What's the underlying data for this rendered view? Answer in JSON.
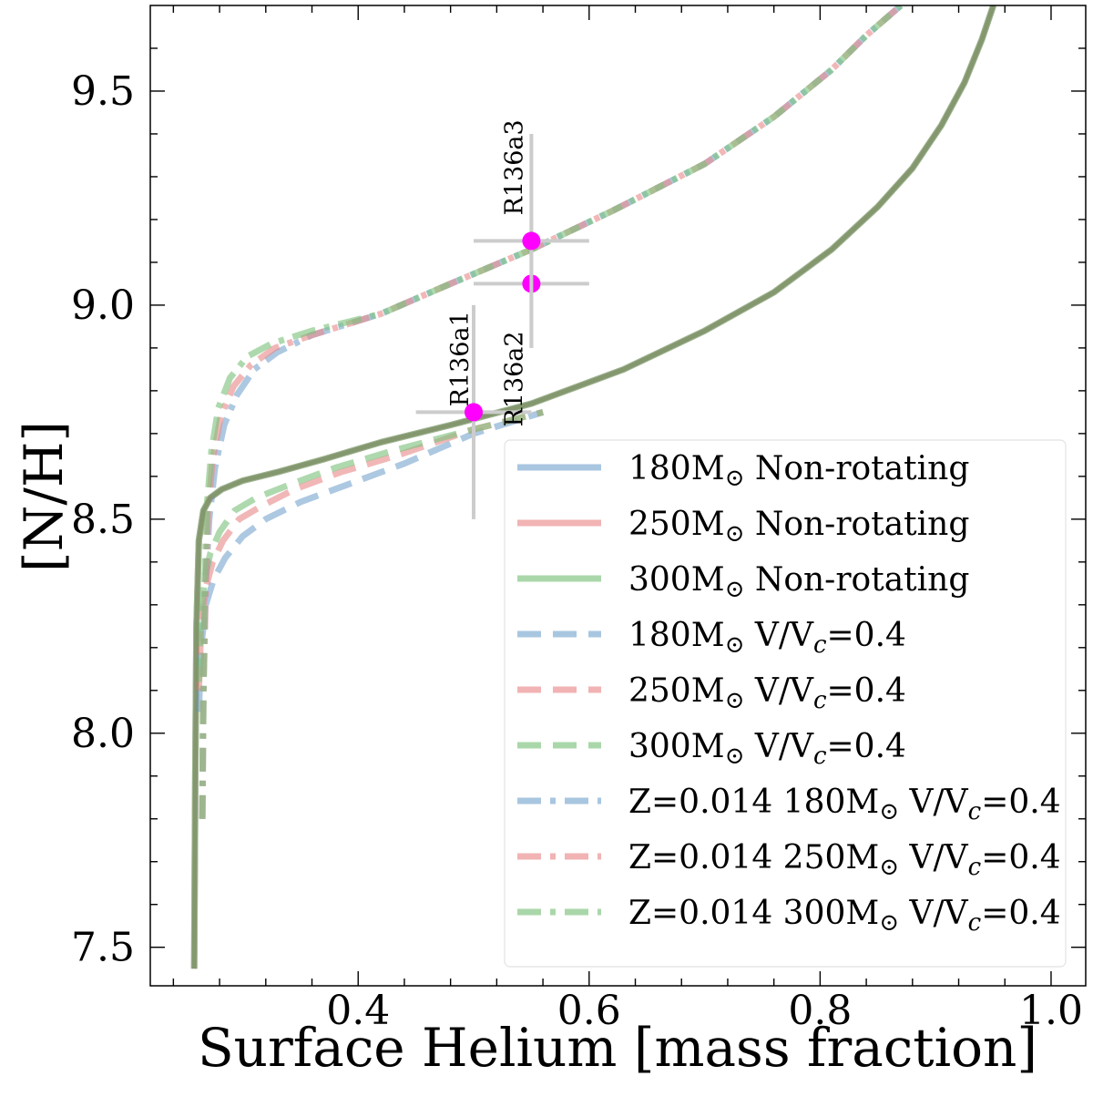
{
  "chart_data": {
    "type": "line",
    "title": "",
    "xlabel": "Surface Helium [mass fraction]",
    "ylabel": "[N/H]",
    "xlim": [
      0.22,
      1.03
    ],
    "ylim": [
      7.41,
      9.7
    ],
    "xticks": [
      0.4,
      0.6,
      0.8,
      1.0
    ],
    "xtick_labels": [
      "0.4",
      "0.6",
      "0.8",
      "1.0"
    ],
    "yticks": [
      7.5,
      8.0,
      8.5,
      9.0,
      9.5
    ],
    "ytick_labels": [
      "7.5",
      "8.0",
      "8.5",
      "9.0",
      "9.5"
    ],
    "grid": false,
    "legend_position": "lower-right",
    "colors": {
      "blue": "#7aa7cf",
      "red": "#e98a8a",
      "green": "#7cc27c",
      "overlap": "#6f7d56",
      "marker": "#ff00ff",
      "errorbar": "#cccccc"
    },
    "legend": [
      {
        "prefix": "180M",
        "suffix": " Non-rotating",
        "color": "blue",
        "dash": "solid"
      },
      {
        "prefix": "250M",
        "suffix": " Non-rotating",
        "color": "red",
        "dash": "solid"
      },
      {
        "prefix": "300M",
        "suffix": " Non-rotating",
        "color": "green",
        "dash": "solid"
      },
      {
        "prefix": "180M",
        "suffix": " V/V",
        "sub": "c",
        "tail": "=0.4",
        "color": "blue",
        "dash": "dashed"
      },
      {
        "prefix": "250M",
        "suffix": " V/V",
        "sub": "c",
        "tail": "=0.4",
        "color": "red",
        "dash": "dashed"
      },
      {
        "prefix": "300M",
        "suffix": " V/V",
        "sub": "c",
        "tail": "=0.4",
        "color": "green",
        "dash": "dashed"
      },
      {
        "prefix": "Z=0.014 180M",
        "suffix": " V/V",
        "sub": "c",
        "tail": "=0.4",
        "color": "blue",
        "dash": "dashdot"
      },
      {
        "prefix": "Z=0.014 250M",
        "suffix": " V/V",
        "sub": "c",
        "tail": "=0.4",
        "color": "red",
        "dash": "dashdot"
      },
      {
        "prefix": "Z=0.014 300M",
        "suffix": " V/V",
        "sub": "c",
        "tail": "=0.4",
        "color": "green",
        "dash": "dashdot"
      }
    ],
    "series": [
      {
        "name": "180M Non-rotating",
        "color": "blue",
        "dash": "solid",
        "x": [
          0.258,
          0.259,
          0.26,
          0.262,
          0.266,
          0.272,
          0.282,
          0.3,
          0.33,
          0.37,
          0.42,
          0.48,
          0.55,
          0.63,
          0.7,
          0.76,
          0.81,
          0.85,
          0.88,
          0.905,
          0.925,
          0.94,
          0.95
        ],
        "y": [
          7.45,
          7.9,
          8.25,
          8.45,
          8.52,
          8.55,
          8.57,
          8.59,
          8.61,
          8.64,
          8.68,
          8.72,
          8.77,
          8.85,
          8.94,
          9.03,
          9.13,
          9.23,
          9.32,
          9.42,
          9.52,
          9.62,
          9.7
        ]
      },
      {
        "name": "250M Non-rotating",
        "color": "red",
        "dash": "solid",
        "x": [
          0.258,
          0.259,
          0.26,
          0.262,
          0.266,
          0.272,
          0.282,
          0.3,
          0.33,
          0.37,
          0.42,
          0.48,
          0.55,
          0.63,
          0.7,
          0.76,
          0.81,
          0.85,
          0.88,
          0.905,
          0.925,
          0.94,
          0.95
        ],
        "y": [
          7.45,
          7.9,
          8.25,
          8.45,
          8.52,
          8.55,
          8.57,
          8.59,
          8.61,
          8.64,
          8.68,
          8.72,
          8.77,
          8.85,
          8.94,
          9.03,
          9.13,
          9.23,
          9.32,
          9.42,
          9.52,
          9.62,
          9.7
        ]
      },
      {
        "name": "300M Non-rotating",
        "color": "green",
        "dash": "solid",
        "x": [
          0.258,
          0.259,
          0.26,
          0.262,
          0.266,
          0.272,
          0.282,
          0.3,
          0.33,
          0.37,
          0.42,
          0.48,
          0.55,
          0.63,
          0.7,
          0.76,
          0.81,
          0.85,
          0.88,
          0.905,
          0.925,
          0.94,
          0.95
        ],
        "y": [
          7.45,
          7.9,
          8.25,
          8.45,
          8.52,
          8.55,
          8.57,
          8.59,
          8.61,
          8.64,
          8.68,
          8.72,
          8.77,
          8.85,
          8.94,
          9.03,
          9.13,
          9.23,
          9.32,
          9.42,
          9.52,
          9.62,
          9.7
        ]
      },
      {
        "name": "180M V/Vc=0.4",
        "color": "blue",
        "dash": "dashed",
        "x": [
          0.262,
          0.264,
          0.268,
          0.275,
          0.285,
          0.3,
          0.32,
          0.35,
          0.39,
          0.44,
          0.5,
          0.56
        ],
        "y": [
          8.05,
          8.2,
          8.3,
          8.36,
          8.41,
          8.46,
          8.5,
          8.54,
          8.58,
          8.63,
          8.7,
          8.75
        ]
      },
      {
        "name": "250M V/Vc=0.4",
        "color": "red",
        "dash": "dashed",
        "x": [
          0.262,
          0.264,
          0.268,
          0.274,
          0.283,
          0.297,
          0.316,
          0.345,
          0.385,
          0.435,
          0.5,
          0.56
        ],
        "y": [
          8.1,
          8.25,
          8.34,
          8.4,
          8.45,
          8.5,
          8.53,
          8.57,
          8.61,
          8.65,
          8.71,
          8.75
        ]
      },
      {
        "name": "300M V/Vc=0.4",
        "color": "green",
        "dash": "dashed",
        "x": [
          0.262,
          0.264,
          0.267,
          0.272,
          0.28,
          0.293,
          0.312,
          0.34,
          0.38,
          0.43,
          0.5,
          0.56
        ],
        "y": [
          8.12,
          8.28,
          8.36,
          8.42,
          8.47,
          8.52,
          8.55,
          8.58,
          8.62,
          8.66,
          8.71,
          8.75
        ]
      },
      {
        "name": "Z=0.014 180M V/Vc=0.4",
        "color": "blue",
        "dash": "dashdot",
        "x": [
          0.265,
          0.266,
          0.268,
          0.271,
          0.276,
          0.284,
          0.295,
          0.31,
          0.33,
          0.36,
          0.42,
          0.48,
          0.55,
          0.62,
          0.7,
          0.76,
          0.81,
          0.84,
          0.87
        ],
        "y": [
          7.8,
          8.1,
          8.35,
          8.5,
          8.62,
          8.72,
          8.79,
          8.85,
          8.89,
          8.93,
          8.98,
          9.05,
          9.13,
          9.22,
          9.33,
          9.44,
          9.55,
          9.63,
          9.7
        ]
      },
      {
        "name": "Z=0.014 250M V/Vc=0.4",
        "color": "red",
        "dash": "dashdot",
        "x": [
          0.265,
          0.266,
          0.268,
          0.27,
          0.274,
          0.281,
          0.292,
          0.307,
          0.328,
          0.36,
          0.42,
          0.48,
          0.55,
          0.62,
          0.7,
          0.76,
          0.81,
          0.84,
          0.87
        ],
        "y": [
          7.8,
          8.1,
          8.35,
          8.52,
          8.64,
          8.74,
          8.81,
          8.86,
          8.9,
          8.93,
          8.98,
          9.05,
          9.13,
          9.22,
          9.33,
          9.44,
          9.55,
          9.63,
          9.7
        ]
      },
      {
        "name": "Z=0.014 300M V/Vc=0.4",
        "color": "green",
        "dash": "dashdot",
        "x": [
          0.265,
          0.266,
          0.267,
          0.269,
          0.273,
          0.279,
          0.289,
          0.304,
          0.325,
          0.36,
          0.42,
          0.48,
          0.55,
          0.62,
          0.7,
          0.76,
          0.81,
          0.84,
          0.87
        ],
        "y": [
          7.8,
          8.1,
          8.35,
          8.53,
          8.66,
          8.76,
          8.83,
          8.88,
          8.91,
          8.94,
          8.98,
          9.05,
          9.13,
          9.22,
          9.33,
          9.44,
          9.55,
          9.63,
          9.7
        ]
      }
    ],
    "stars": [
      {
        "name": "R136a1",
        "x": 0.5,
        "y": 8.75,
        "xerr": 0.05,
        "yerr": 0.25
      },
      {
        "name": "R136a2",
        "x": 0.55,
        "y": 9.05,
        "xerr": 0.05,
        "yerr": 0.15
      },
      {
        "name": "R136a3",
        "x": 0.55,
        "y": 9.15,
        "xerr": 0.05,
        "yerr": 0.25
      }
    ]
  }
}
